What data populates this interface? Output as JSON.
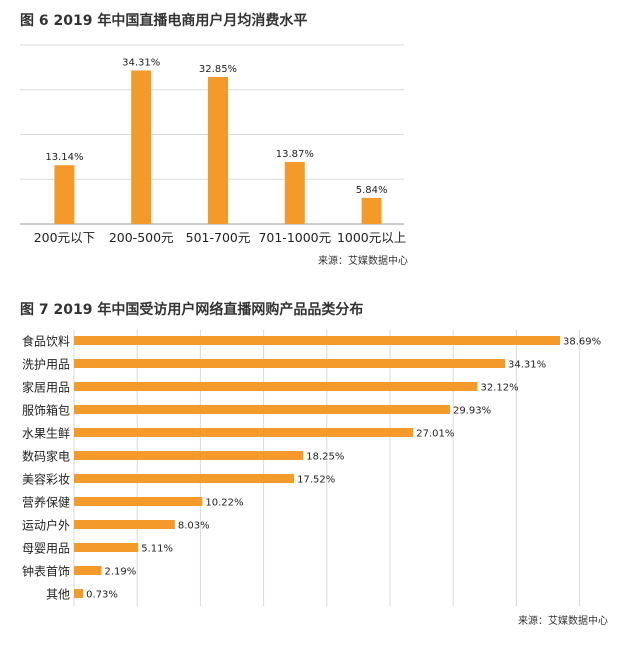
{
  "source_text": "来源：艾媒数据中心",
  "chart_data": [
    {
      "type": "bar",
      "title": "图 6 2019 年中国直播电商用户月均消费水平",
      "categories": [
        "200元以下",
        "200-500元",
        "501-700元",
        "701-1000元",
        "1000元以上"
      ],
      "values": [
        13.14,
        34.31,
        32.85,
        13.87,
        5.84
      ],
      "value_labels": [
        "13.14%",
        "34.31%",
        "32.85%",
        "13.87%",
        "5.84%"
      ],
      "ylim": [
        0,
        40
      ],
      "grid": true,
      "color": "#f39a2a",
      "xlabel": "",
      "ylabel": ""
    },
    {
      "type": "bar",
      "orientation": "horizontal",
      "title": "图 7 2019 年中国受访用户网络直播网购产品品类分布",
      "categories": [
        "食品饮料",
        "洗护用品",
        "家居用品",
        "服饰箱包",
        "水果生鲜",
        "数码家电",
        "美容彩妆",
        "营养保健",
        "运动户外",
        "母婴用品",
        "钟表首饰",
        "其他"
      ],
      "values": [
        38.69,
        34.31,
        32.12,
        29.93,
        27.01,
        18.25,
        17.52,
        10.22,
        8.03,
        5.11,
        2.19,
        0.73
      ],
      "value_labels": [
        "38.69%",
        "34.31%",
        "32.12%",
        "29.93%",
        "27.01%",
        "18.25%",
        "17.52%",
        "10.22%",
        "8.03%",
        "5.11%",
        "2.19%",
        "0.73%"
      ],
      "xlim": [
        0,
        40
      ],
      "grid": true,
      "color": "#f39a2a",
      "xlabel": "",
      "ylabel": ""
    }
  ]
}
